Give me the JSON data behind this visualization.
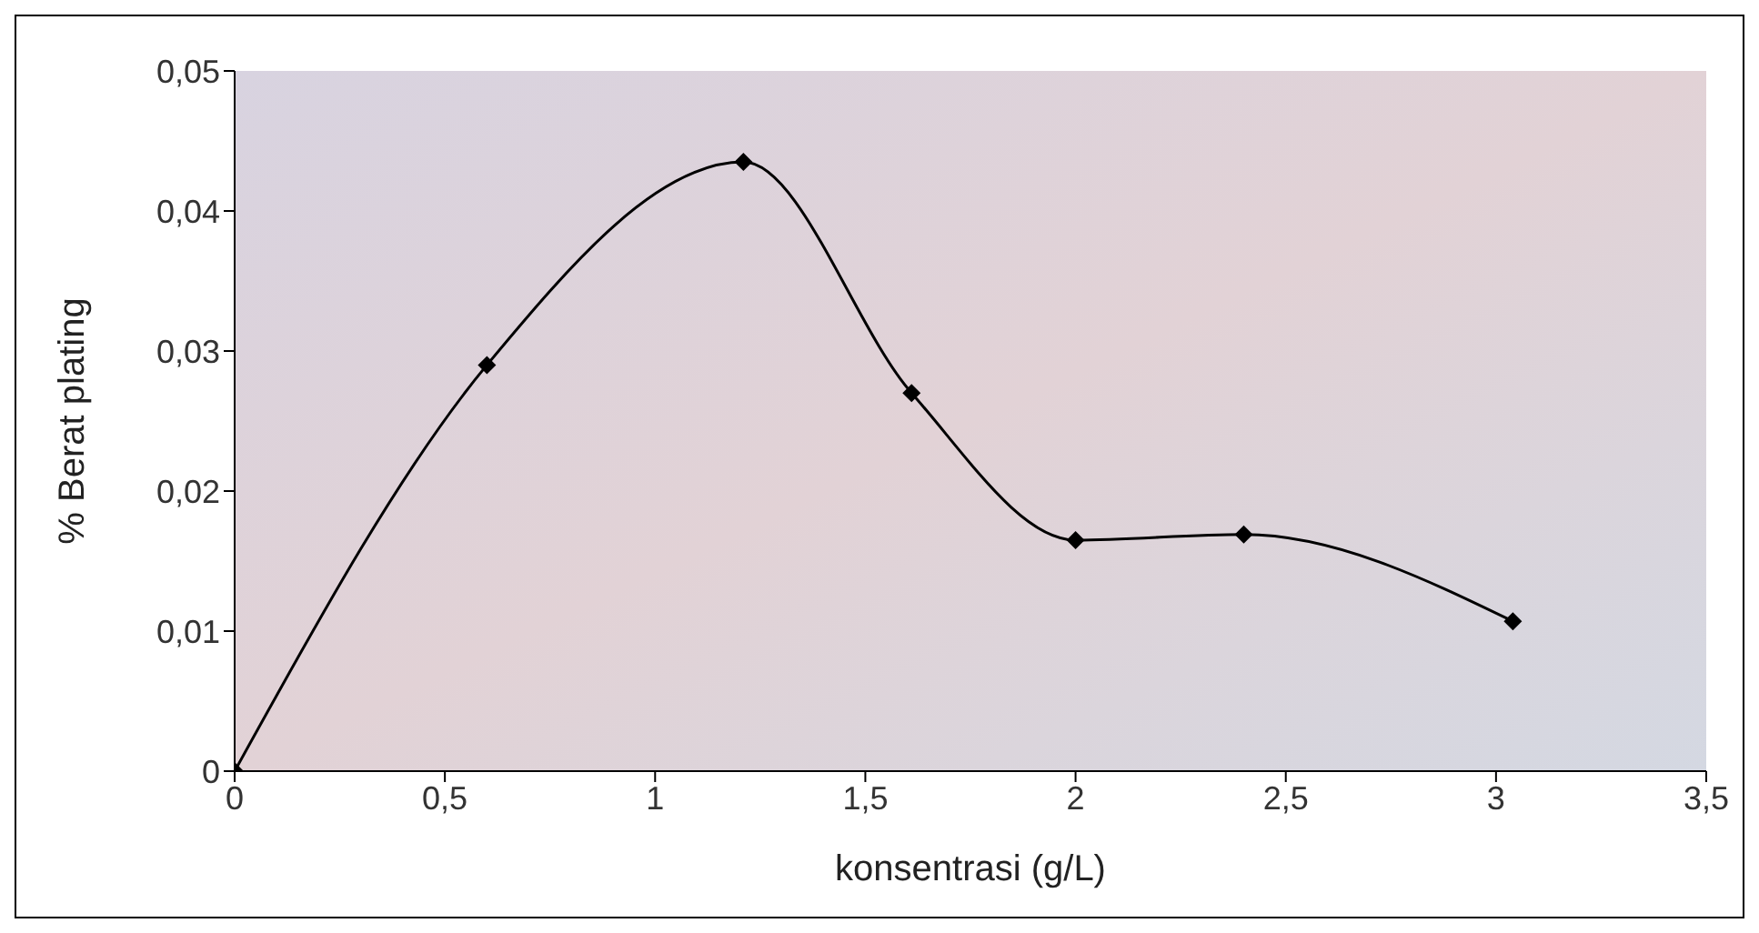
{
  "chart_data": {
    "type": "line",
    "xlabel": "konsentrasi (g/L)",
    "ylabel": "% Berat plating",
    "x": [
      0,
      0.6,
      1.21,
      1.61,
      2.0,
      2.4,
      3.04
    ],
    "series": [
      {
        "color": "#000000",
        "values": [
          0,
          0.029,
          0.0435,
          0.027,
          0.0165,
          0.0169,
          0.0107
        ]
      }
    ],
    "xlim": [
      0,
      3.5
    ],
    "xticks": [
      0,
      {
        "value": 0.5,
        "label": "0,5"
      },
      1,
      {
        "value": 1.5,
        "label": "1,5"
      },
      2,
      {
        "value": 2.5,
        "label": "2,5"
      },
      3,
      {
        "value": 3.5,
        "label": "3,5"
      }
    ],
    "ylim": [
      0,
      0.05
    ],
    "yticks": [
      0,
      {
        "value": 0.01,
        "label": "0,01"
      },
      {
        "value": 0.02,
        "label": "0,02"
      },
      {
        "value": 0.03,
        "label": "0,03"
      },
      {
        "value": 0.04,
        "label": "0,04"
      },
      {
        "value": 0.05,
        "label": "0,05"
      }
    ],
    "grid": false,
    "legend": false,
    "marker": "diamond",
    "line_style": "solid"
  }
}
